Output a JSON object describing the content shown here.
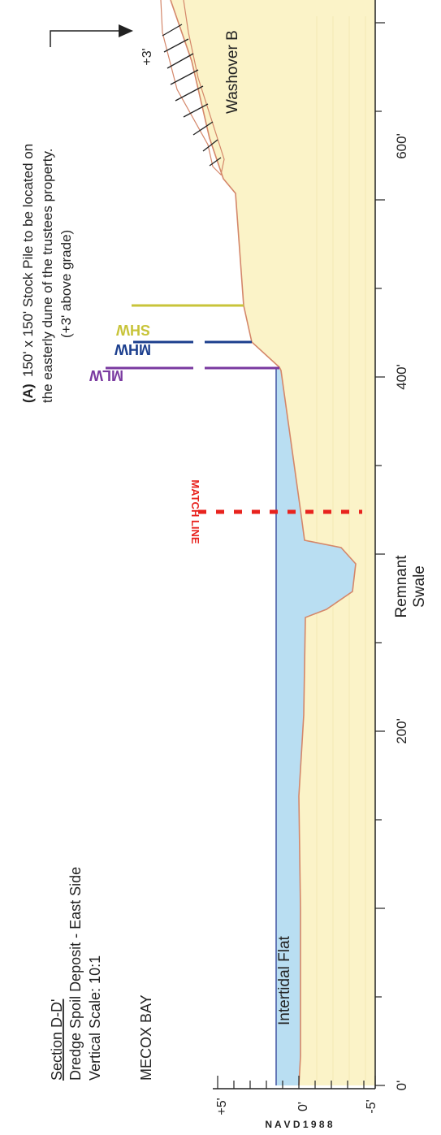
{
  "drawing": {
    "title": "Section D-D'",
    "subtitle": "Dredge Spoil Deposit - East Side",
    "vertical_scale": "Vertical Scale: 10:1",
    "location": "MECOX BAY",
    "datum": "N A V D   1 9 8 8"
  },
  "axis": {
    "distance_ticks": [
      "0'",
      "200'",
      "400'",
      "600'"
    ],
    "elevation_ticks": [
      "+5'",
      "0'",
      "-5'"
    ]
  },
  "labels": {
    "intertidal_flat": "Intertidal Flat",
    "remnant_swale_1": "Remnant",
    "remnant_swale_2": "Swale",
    "washover": "Washover B",
    "plus3": "+3'",
    "match_line": "MATCH LINE",
    "mlw": "MLW",
    "mhw": "MHW",
    "shw": "SHW"
  },
  "note": {
    "marker": "(A)",
    "line1": "150' x 150' Stock Pile to be located on",
    "line2": "the easterly dune of the trustees property.",
    "line3": "(+3' above grade)"
  },
  "colors": {
    "sand": "#fbf3c8",
    "water": "#b9def2",
    "mlw": "#7a3aa0",
    "mhw": "#1c3f8e",
    "shw": "#c8c43a",
    "match_line": "#e8231e",
    "profile": "#d4876a"
  }
}
